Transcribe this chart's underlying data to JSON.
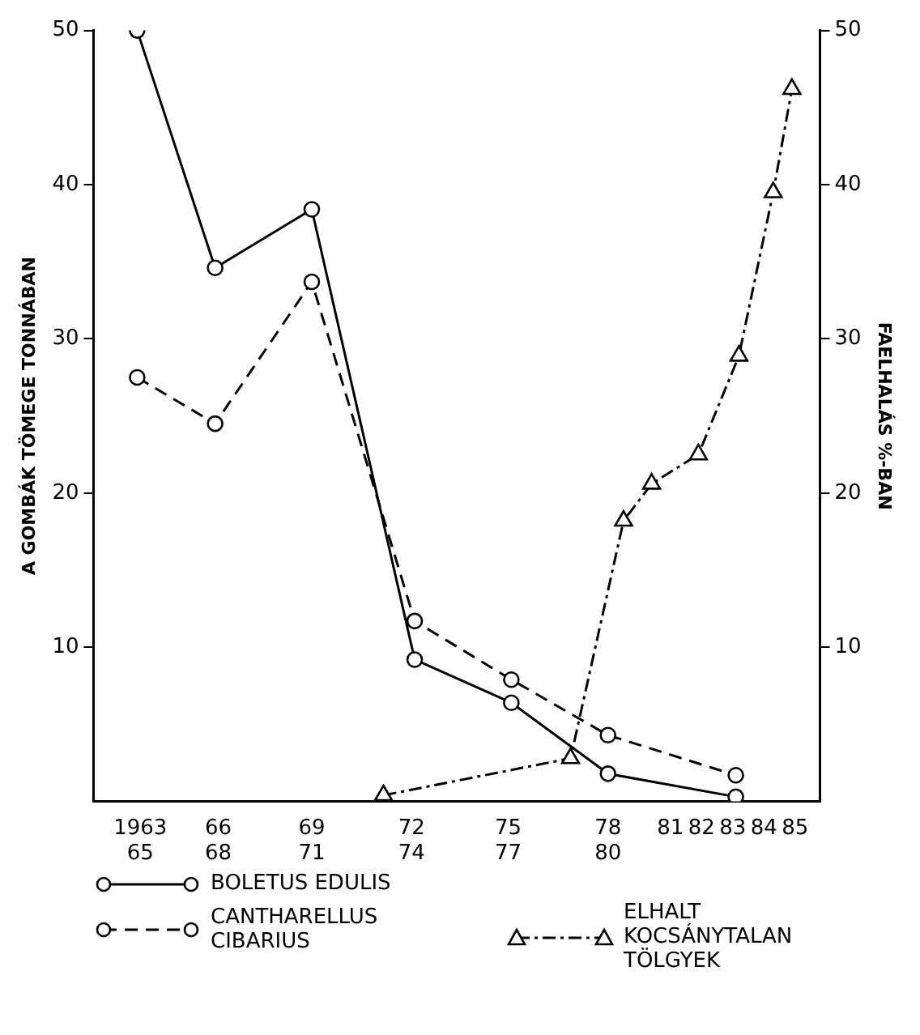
{
  "chart_data": {
    "type": "line",
    "ylabel": "A GOMBÁK TÖMEGE TONNÁBAN",
    "y2label": "FAELHALÁS %-BAN",
    "xlim": [
      1962.5,
      1985.8
    ],
    "xticks": [
      {
        "value": 1964,
        "label": "1963\n65"
      },
      {
        "value": 1966.5,
        "label": "66\n68"
      },
      {
        "value": 1969.5,
        "label": "69\n71"
      },
      {
        "value": 1972.7,
        "label": "72\n74"
      },
      {
        "value": 1975.8,
        "label": "75\n77"
      },
      {
        "value": 1979,
        "label": "78\n80"
      },
      {
        "value": 1981,
        "label": "81"
      },
      {
        "value": 1982,
        "label": "82"
      },
      {
        "value": 1983,
        "label": "83"
      },
      {
        "value": 1984,
        "label": "84"
      },
      {
        "value": 1985,
        "label": "85"
      }
    ],
    "ylim": [
      0,
      50
    ],
    "yticks": [
      10,
      20,
      30,
      40,
      50
    ],
    "y2lim": [
      0,
      50
    ],
    "y2ticks": [
      10,
      20,
      30,
      40,
      50
    ],
    "grid": false,
    "legend": "bottom",
    "series": [
      {
        "name": "BOLETUS EDULIS",
        "color": "#000000",
        "marker": "circle",
        "line_style": "solid",
        "x": [
          1963.9,
          1966.4,
          1969.5,
          1972.8,
          1975.9,
          1979.0,
          1983.1
        ],
        "values": [
          50,
          34.6,
          38.4,
          9.2,
          6.4,
          1.8,
          0.3
        ]
      },
      {
        "name": "CANTHARELLUS CIBARIUS",
        "color": "#000000",
        "marker": "circle",
        "line_style": "dashed",
        "x": [
          1963.9,
          1966.4,
          1969.5,
          1972.8,
          1975.9,
          1979.0,
          1983.1
        ],
        "values": [
          27.5,
          24.5,
          33.7,
          11.7,
          7.9,
          4.3,
          1.7
        ]
      },
      {
        "name": "ELHALT KOCSÁNYTALAN TÖLGYEK",
        "color": "#000000",
        "marker": "triangle",
        "line_style": "dashdot",
        "axis": "y2",
        "x": [
          1971.8,
          1977.8,
          1979.5,
          1980.4,
          1981.9,
          1983.2,
          1984.3,
          1984.9
        ],
        "values": [
          0.4,
          2.8,
          18.2,
          20.6,
          22.5,
          28.9,
          39.5,
          46.2
        ]
      }
    ]
  }
}
